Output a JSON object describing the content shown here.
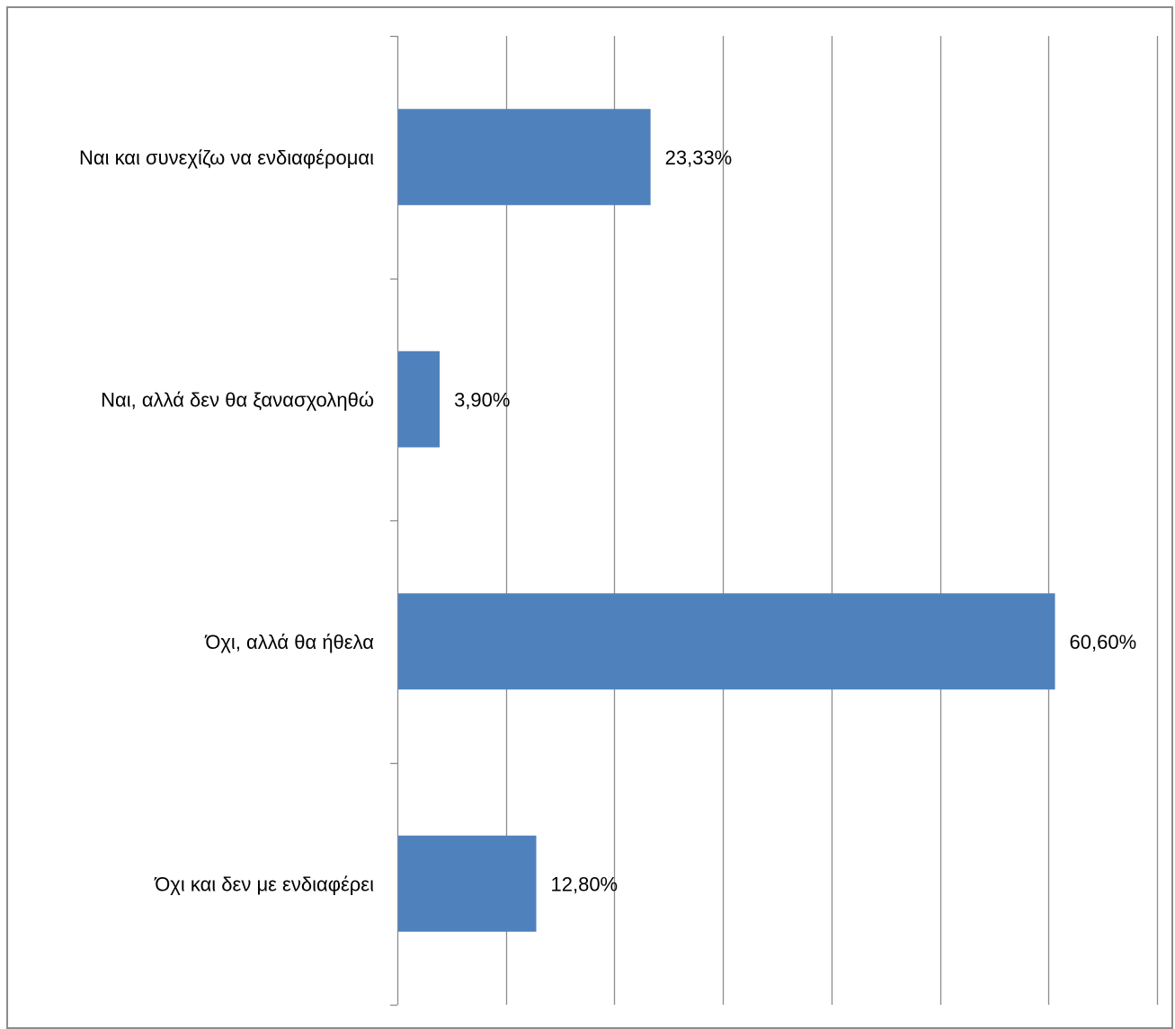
{
  "chart_data": {
    "type": "bar",
    "orientation": "horizontal",
    "categories": [
      "Ναι και συνεχίζω να ενδιαφέρομαι",
      "Ναι, αλλά δεν θα ξανασχοληθώ",
      "Όχι, αλλά θα ήθελα",
      "Όχι και δεν με ενδιαφέρει"
    ],
    "values": [
      23.33,
      3.9,
      60.6,
      12.8
    ],
    "data_labels": [
      "23,33%",
      "3,90%",
      "60,60%",
      "12,80%"
    ],
    "value_unit": "%",
    "xlim": [
      0,
      70
    ],
    "x_gridline_step": 10,
    "value_axis_tick_labels_shown": false,
    "grid": true,
    "legend": "none",
    "bar_color": "#4f81bd",
    "grid_color": "#8c8c8c"
  }
}
